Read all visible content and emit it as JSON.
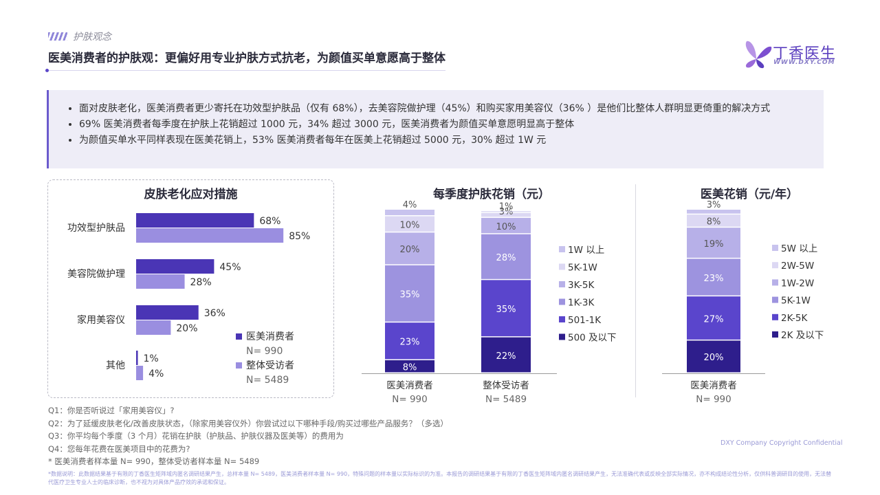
{
  "header": {
    "section": "护肤观念",
    "title": "医美消费者的护肤观：更偏好用专业护肤方式抗老，为颜值买单意愿高于整体"
  },
  "logo": {
    "name": "丁香医生",
    "url": "WWW.DXY.COM"
  },
  "summary": [
    "面对皮肤老化，医美消费者更少寄托在功效型护肤品（仅有 68%），去美容院做护理（45%）和购买家用美容仪（36% ）是他们比整体人群明显更倚重的解决方式",
    "69% 医美消费者每季度在护肤上花销超过 1000 元，34% 超过 3000 元，医美消费者为颜值买单意愿明显高于整体",
    "为颜值买单水平同样表现在医美花销上，53% 医美消费者每年在医美上花销超过 5000 元，30% 超过 1W 元"
  ],
  "colors": {
    "accent": "#5b47c9",
    "s1": "#4a35b5",
    "s2": "#9a8ee0",
    "stack": [
      "#2e1e8c",
      "#5a45cc",
      "#9d93df",
      "#b7b0e8",
      "#dcd8f3",
      "#c8c3ee"
    ]
  },
  "chart_data": [
    {
      "type": "bar",
      "orientation": "horizontal",
      "title": "皮肤老化应对措施",
      "categories": [
        "功效型护肤品",
        "美容院做护理",
        "家用美容仪",
        "其他"
      ],
      "series": [
        {
          "name": "医美消费者",
          "n": "N= 990",
          "values": [
            68,
            45,
            36,
            1
          ],
          "labels": [
            "68%",
            "45%",
            "36%",
            "1%"
          ]
        },
        {
          "name": "整体受访者",
          "n": "N= 5489",
          "values": [
            85,
            28,
            20,
            4
          ],
          "labels": [
            "85%",
            "28%",
            "20%",
            "4%"
          ]
        }
      ],
      "unit": "%"
    },
    {
      "type": "bar",
      "stacked": true,
      "title": "每季度护肤花销（元）",
      "categories": [
        "医美消费者",
        "整体受访者"
      ],
      "category_n": [
        "N= 990",
        "N= 5489"
      ],
      "series": [
        {
          "name": "500 及以下",
          "values": [
            8,
            22
          ]
        },
        {
          "name": "501-1K",
          "values": [
            23,
            35
          ]
        },
        {
          "name": "1K-3K",
          "values": [
            35,
            28
          ]
        },
        {
          "name": "3K-5K",
          "values": [
            20,
            10
          ]
        },
        {
          "name": "5K-1W",
          "values": [
            10,
            3
          ]
        },
        {
          "name": "1W 以上",
          "values": [
            4,
            1
          ]
        }
      ],
      "unit": "%"
    },
    {
      "type": "bar",
      "stacked": true,
      "title": "医美花销（元/年）",
      "categories": [
        "医美消费者"
      ],
      "category_n": [
        "N= 990"
      ],
      "series": [
        {
          "name": "2K 及以下",
          "values": [
            20
          ]
        },
        {
          "name": "2K-5K",
          "values": [
            27
          ]
        },
        {
          "name": "5K-1W",
          "values": [
            23
          ]
        },
        {
          "name": "1W-2W",
          "values": [
            19
          ]
        },
        {
          "name": "2W-5W",
          "values": [
            8
          ]
        },
        {
          "name": "5W 以上",
          "values": [
            3
          ]
        }
      ],
      "unit": "%"
    }
  ],
  "footnotes": [
    "Q1：你是否听说过「家用美容仪」?",
    "Q2：为了延缓皮肤老化/改善皮肤状态，（除家用美容仪外）你尝试过以下哪种手段/购买过哪些产品服务？（多选）",
    "Q3：你平均每个季度（3 个月）花销在护肤（护肤品、护肤仪器及医美等）的费用为",
    "Q4：您每年花费在医美项目中的花费为?",
    "* 医美消费者样本量 N= 990，整体受访者样本量 N= 5489"
  ],
  "copyright": "DXY Company Copyright Confidential",
  "disclaimer": "*数据说明：此数据结果基于有限的丁香医生矩阵域内匿名调研结果产生，总样本量 N= 5489，医美消费者样本量 N= 990，特殊问题的样本量以实际标识的为准。本报告的调研结果基于有限的丁香医生矩阵域内匿名调研结果产生，无法准确代表或反映全部实际情况，亦不构成结论性分析，仅供科普调研目的使用，无法替代医疗卫生专业人士的临床诊断，也不视为对具体产品疗效的承诺和保证。"
}
